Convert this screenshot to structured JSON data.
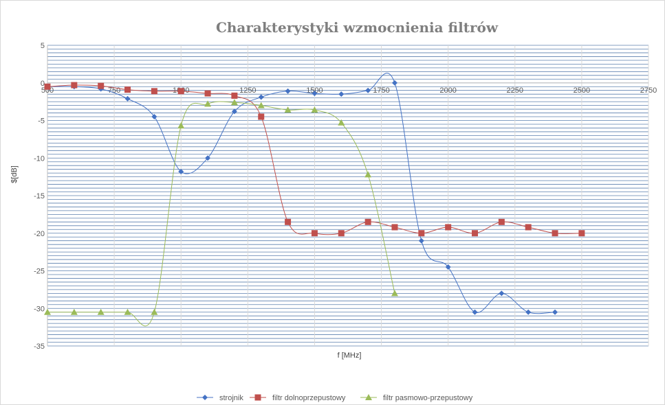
{
  "chart_data": {
    "type": "line",
    "title": "Charakterystyki wzmocnienia filtrów",
    "xlabel": "f [MHz]",
    "ylabel": "$[dB]",
    "xlim": [
      500,
      2750
    ],
    "ylim": [
      -35,
      5
    ],
    "xticks": [
      "500",
      "750",
      "1000",
      "1250",
      "1500",
      "1750",
      "2000",
      "2250",
      "2500",
      "2750"
    ],
    "yticks": [
      "5",
      "0",
      "-5",
      "-10",
      "-15",
      "-20",
      "-25",
      "-30",
      "-35"
    ],
    "grid": true,
    "legend_position": "bottom",
    "series": [
      {
        "name": "strojnik",
        "color": "#4472c4",
        "marker": "diamond",
        "x": [
          500,
          600,
          700,
          800,
          900,
          1000,
          1100,
          1200,
          1300,
          1400,
          1500,
          1600,
          1700,
          1800,
          1900,
          2000,
          2100,
          2200,
          2300,
          2400
        ],
        "y": [
          -0.5,
          -0.5,
          -0.8,
          -2.1,
          -4.5,
          -11.8,
          -10,
          -3.8,
          -1.9,
          -1.1,
          -1.4,
          -1.5,
          -1,
          0,
          -21,
          -24.5,
          -30.5,
          -28,
          -30.5,
          -30.5
        ]
      },
      {
        "name": "filtr dolnoprzepustowy",
        "color": "#c0504d",
        "marker": "square",
        "x": [
          500,
          600,
          700,
          800,
          900,
          1000,
          1100,
          1200,
          1300,
          1400,
          1500,
          1600,
          1700,
          1800,
          1900,
          2000,
          2100,
          2200,
          2300,
          2400,
          2500
        ],
        "y": [
          -0.5,
          -0.3,
          -0.4,
          -0.9,
          -1.1,
          -1.1,
          -1.4,
          -1.7,
          -4.5,
          -18.5,
          -20,
          -20,
          -18.5,
          -19.2,
          -20,
          -19.2,
          -20,
          -18.5,
          -19.2,
          -20,
          -20
        ]
      },
      {
        "name": "filtr pasmowo-przepustowy",
        "color": "#9bbb59",
        "marker": "triangle",
        "x": [
          500,
          600,
          700,
          800,
          900,
          1000,
          1100,
          1200,
          1300,
          1400,
          1500,
          1600,
          1700,
          1800
        ],
        "y": [
          -30.5,
          -30.5,
          -30.5,
          -30.5,
          -30.5,
          -5.7,
          -2.8,
          -2.6,
          -3,
          -3.6,
          -3.6,
          -5.3,
          -12.2,
          -28
        ]
      }
    ]
  }
}
